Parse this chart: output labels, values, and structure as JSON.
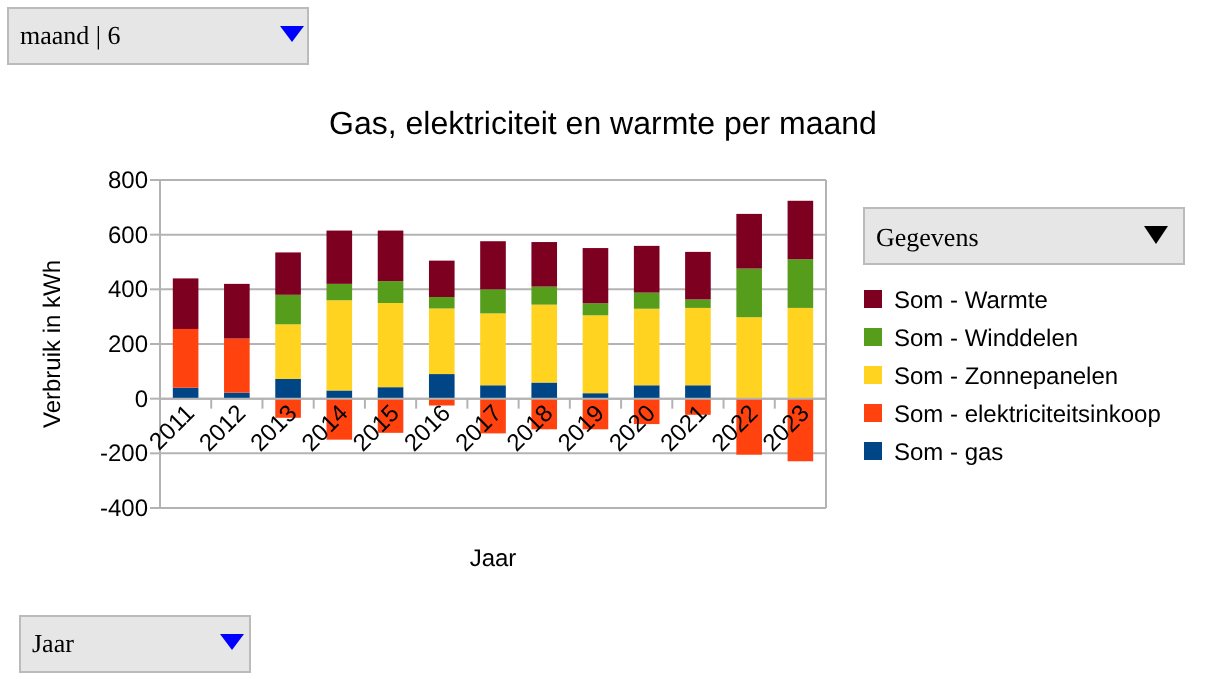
{
  "chart_data": {
    "type": "bar",
    "stacked": true,
    "title": "Gas, elektriciteit en warmte per maand",
    "xlabel": "Jaar",
    "ylabel": "Verbruik in kWh",
    "legend_title": "Gegevens",
    "legend": "right",
    "grid": "y",
    "categories": [
      "2011",
      "2012",
      "2013",
      "2014",
      "2015",
      "2016",
      "2017",
      "2018",
      "2019",
      "2020",
      "2021",
      "2022",
      "2023"
    ],
    "ylim": [
      -400,
      800
    ],
    "yticks": [
      -400,
      -200,
      0,
      200,
      400,
      600,
      800
    ],
    "series": [
      {
        "name": "Som - gas",
        "color": "#004586",
        "values": [
          40,
          22,
          72,
          30,
          42,
          90,
          49,
          59,
          20,
          49,
          49,
          0,
          0
        ]
      },
      {
        "name": "Som - elektriciteitsinkoop",
        "color": "#ff420e",
        "values": [
          215,
          198,
          -70,
          -150,
          -125,
          -25,
          -127,
          -112,
          -112,
          -93,
          -59,
          -205,
          -229
        ]
      },
      {
        "name": "Som - Zonnepanelen",
        "color": "#ffd320",
        "values": [
          0,
          0,
          200,
          330,
          308,
          240,
          263,
          285,
          285,
          280,
          283,
          298,
          332
        ]
      },
      {
        "name": "Som - Winddelen",
        "color": "#579d1c",
        "values": [
          0,
          0,
          108,
          60,
          80,
          42,
          88,
          66,
          44,
          59,
          31,
          178,
          178
        ]
      },
      {
        "name": "Som - Warmte",
        "color": "#7e0021",
        "values": [
          185,
          200,
          155,
          195,
          185,
          133,
          176,
          163,
          202,
          171,
          174,
          200,
          214
        ]
      }
    ],
    "annotations": [
      "maand | 6",
      "Jaar"
    ]
  }
}
